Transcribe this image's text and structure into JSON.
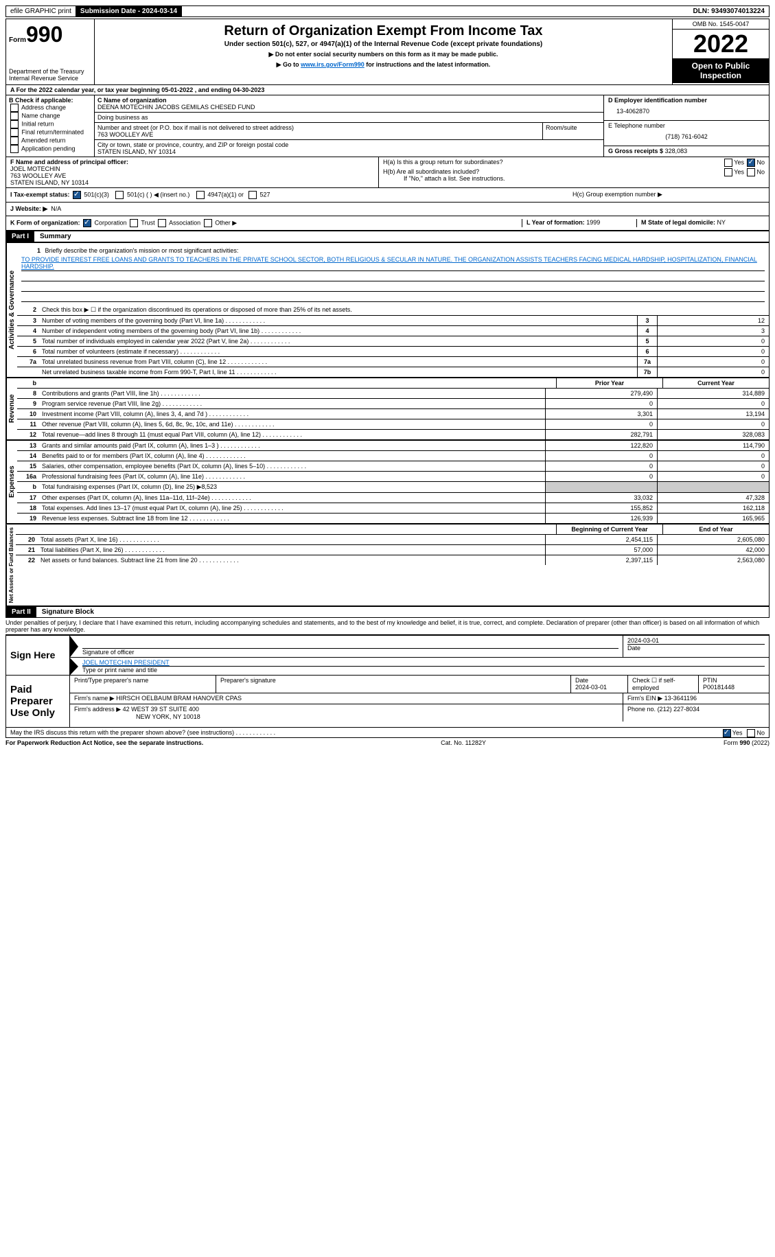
{
  "header_bar": {
    "efile": "efile GRAPHIC print",
    "submission_label": "Submission Date - 2024-03-14",
    "dln": "DLN: 93493074013224"
  },
  "top": {
    "form_label": "Form",
    "form_number": "990",
    "dept": "Department of the Treasury Internal Revenue Service",
    "title": "Return of Organization Exempt From Income Tax",
    "subtitle": "Under section 501(c), 527, or 4947(a)(1) of the Internal Revenue Code (except private foundations)",
    "note1": "▶ Do not enter social security numbers on this form as it may be made public.",
    "note2_pre": "▶ Go to ",
    "note2_link": "www.irs.gov/Form990",
    "note2_post": " for instructions and the latest information.",
    "omb": "OMB No. 1545-0047",
    "year": "2022",
    "open": "Open to Public Inspection"
  },
  "period": "A For the 2022 calendar year, or tax year beginning 05-01-2022    , and ending 04-30-2023",
  "check_b": {
    "label": "B Check if applicable:",
    "items": [
      "Address change",
      "Name change",
      "Initial return",
      "Final return/terminated",
      "Amended return",
      "Application pending"
    ]
  },
  "entity": {
    "name_label": "C Name of organization",
    "name": "DEENA MOTECHIN JACOBS GEMILAS CHESED FUND",
    "dba_label": "Doing business as",
    "dba": "",
    "addr_label": "Number and street (or P.O. box if mail is not delivered to street address)",
    "addr": "763 WOOLLEY AVE",
    "room_label": "Room/suite",
    "city_label": "City or town, state or province, country, and ZIP or foreign postal code",
    "city": "STATEN ISLAND, NY  10314"
  },
  "right_info": {
    "ein_label": "D Employer identification number",
    "ein": "13-4062870",
    "phone_label": "E Telephone number",
    "phone": "(718) 761-6042",
    "gross_label": "G Gross receipts $",
    "gross": "328,083"
  },
  "officer": {
    "label": "F  Name and address of principal officer:",
    "name": "JOEL MOTECHIN",
    "addr1": "763 WOOLLEY AVE",
    "addr2": "STATEN ISLAND, NY  10314"
  },
  "h_section": {
    "ha": "H(a)  Is this a group return for subordinates?",
    "hb": "H(b)  Are all subordinates included?",
    "hb_note": "If \"No,\" attach a list. See instructions.",
    "hc": "H(c)  Group exemption number ▶",
    "yes": "Yes",
    "no": "No"
  },
  "tax_status": {
    "label": "I  Tax-exempt status:",
    "opt1": "501(c)(3)",
    "opt2": "501(c) (  ) ◀ (insert no.)",
    "opt3": "4947(a)(1) or",
    "opt4": "527"
  },
  "website": {
    "label": "J  Website: ▶",
    "value": "N/A"
  },
  "form_org": {
    "label": "K Form of organization:",
    "opts": [
      "Corporation",
      "Trust",
      "Association",
      "Other ▶"
    ],
    "year_label": "L Year of formation:",
    "year": "1999",
    "state_label": "M State of legal domicile:",
    "state": "NY"
  },
  "part1": {
    "header": "Part I",
    "title": "Summary",
    "mission_label": "Briefly describe the organization's mission or most significant activities:",
    "mission": "TO PROVIDE INTEREST FREE LOANS AND GRANTS TO TEACHERS IN THE PRIVATE SCHOOL SECTOR, BOTH RELIGIOUS & SECULAR IN NATURE. THE ORGANIZATION ASSISTS TEACHERS FACING MEDICAL HARDSHIP, HOSPITALIZATION, FINANCIAL HARDSHIP.",
    "line2": "Check this box ▶ ☐  if the organization discontinued its operations or disposed of more than 25% of its net assets.",
    "lines_gov": [
      {
        "n": "3",
        "t": "Number of voting members of the governing body (Part VI, line 1a)",
        "box": "3",
        "v": "12"
      },
      {
        "n": "4",
        "t": "Number of independent voting members of the governing body (Part VI, line 1b)",
        "box": "4",
        "v": "3"
      },
      {
        "n": "5",
        "t": "Total number of individuals employed in calendar year 2022 (Part V, line 2a)",
        "box": "5",
        "v": "0"
      },
      {
        "n": "6",
        "t": "Total number of volunteers (estimate if necessary)",
        "box": "6",
        "v": "0"
      },
      {
        "n": "7a",
        "t": "Total unrelated business revenue from Part VIII, column (C), line 12",
        "box": "7a",
        "v": "0"
      },
      {
        "n": "",
        "t": "Net unrelated business taxable income from Form 990-T, Part I, line 11",
        "box": "7b",
        "v": "0"
      }
    ],
    "col_headers": {
      "prior": "Prior Year",
      "current": "Current Year"
    },
    "revenue": [
      {
        "n": "8",
        "t": "Contributions and grants (Part VIII, line 1h)",
        "p": "279,490",
        "c": "314,889"
      },
      {
        "n": "9",
        "t": "Program service revenue (Part VIII, line 2g)",
        "p": "0",
        "c": "0"
      },
      {
        "n": "10",
        "t": "Investment income (Part VIII, column (A), lines 3, 4, and 7d )",
        "p": "3,301",
        "c": "13,194"
      },
      {
        "n": "11",
        "t": "Other revenue (Part VIII, column (A), lines 5, 6d, 8c, 9c, 10c, and 11e)",
        "p": "0",
        "c": "0"
      },
      {
        "n": "12",
        "t": "Total revenue—add lines 8 through 11 (must equal Part VIII, column (A), line 12)",
        "p": "282,791",
        "c": "328,083"
      }
    ],
    "expenses": [
      {
        "n": "13",
        "t": "Grants and similar amounts paid (Part IX, column (A), lines 1–3 )",
        "p": "122,820",
        "c": "114,790"
      },
      {
        "n": "14",
        "t": "Benefits paid to or for members (Part IX, column (A), line 4)",
        "p": "0",
        "c": "0"
      },
      {
        "n": "15",
        "t": "Salaries, other compensation, employee benefits (Part IX, column (A), lines 5–10)",
        "p": "0",
        "c": "0"
      },
      {
        "n": "16a",
        "t": "Professional fundraising fees (Part IX, column (A), line 11e)",
        "p": "0",
        "c": "0"
      },
      {
        "n": "b",
        "t": "Total fundraising expenses (Part IX, column (D), line 25) ▶8,523",
        "p": "",
        "c": "",
        "shade": true
      },
      {
        "n": "17",
        "t": "Other expenses (Part IX, column (A), lines 11a–11d, 11f–24e)",
        "p": "33,032",
        "c": "47,328"
      },
      {
        "n": "18",
        "t": "Total expenses. Add lines 13–17 (must equal Part IX, column (A), line 25)",
        "p": "155,852",
        "c": "162,118"
      },
      {
        "n": "19",
        "t": "Revenue less expenses. Subtract line 18 from line 12",
        "p": "126,939",
        "c": "165,965"
      }
    ],
    "net_headers": {
      "begin": "Beginning of Current Year",
      "end": "End of Year"
    },
    "net": [
      {
        "n": "20",
        "t": "Total assets (Part X, line 16)",
        "p": "2,454,115",
        "c": "2,605,080"
      },
      {
        "n": "21",
        "t": "Total liabilities (Part X, line 26)",
        "p": "57,000",
        "c": "42,000"
      },
      {
        "n": "22",
        "t": "Net assets or fund balances. Subtract line 21 from line 20",
        "p": "2,397,115",
        "c": "2,563,080"
      }
    ]
  },
  "part2": {
    "header": "Part II",
    "title": "Signature Block",
    "penalties": "Under penalties of perjury, I declare that I have examined this return, including accompanying schedules and statements, and to the best of my knowledge and belief, it is true, correct, and complete. Declaration of preparer (other than officer) is based on all information of which preparer has any knowledge."
  },
  "sign": {
    "label": "Sign Here",
    "sig_label": "Signature of officer",
    "date": "2024-03-01",
    "date_label": "Date",
    "name": "JOEL MOTECHIN  PRESIDENT",
    "name_label": "Type or print name and title"
  },
  "preparer": {
    "label": "Paid Preparer Use Only",
    "print_label": "Print/Type preparer's name",
    "sig_label": "Preparer's signature",
    "date_label": "Date",
    "date": "2024-03-01",
    "check_label": "Check ☐ if self-employed",
    "ptin_label": "PTIN",
    "ptin": "P00181448",
    "firm_name_label": "Firm's name    ▶",
    "firm_name": "HIRSCH OELBAUM BRAM HANOVER CPAS",
    "firm_ein_label": "Firm's EIN ▶",
    "firm_ein": "13-3641196",
    "firm_addr_label": "Firm's address ▶",
    "firm_addr1": "42 WEST 39 ST SUITE 400",
    "firm_addr2": "NEW YORK, NY  10018",
    "phone_label": "Phone no.",
    "phone": "(212) 227-8034"
  },
  "discuss": {
    "text": "May the IRS discuss this return with the preparer shown above? (see instructions)",
    "yes": "Yes",
    "no": "No"
  },
  "footer": {
    "left": "For Paperwork Reduction Act Notice, see the separate instructions.",
    "mid": "Cat. No. 11282Y",
    "right": "Form 990 (2022)"
  },
  "vert_labels": {
    "gov": "Activities & Governance",
    "rev": "Revenue",
    "exp": "Expenses",
    "net": "Net Assets or Fund Balances"
  }
}
